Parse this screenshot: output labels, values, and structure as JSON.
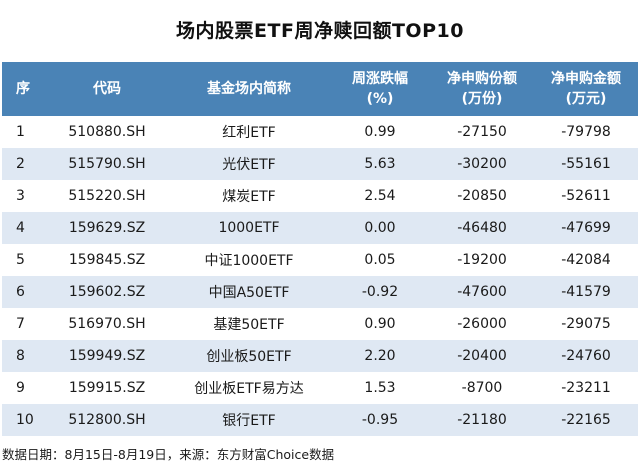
{
  "title": "场内股票ETF周净赎回额TOP10",
  "headers": {
    "rank": "序",
    "code": "代码",
    "name": "基金场内简称",
    "change_line1": "周涨跌幅",
    "change_line2": "(%)",
    "shares_line1": "净申购份额",
    "shares_line2": "(万份)",
    "amount_line1": "净申购金额",
    "amount_line2": "(万元)"
  },
  "rows": [
    {
      "rank": "1",
      "code": "510880.SH",
      "name": "红利ETF",
      "change": "0.99",
      "shares": "-27150",
      "amount": "-79798"
    },
    {
      "rank": "2",
      "code": "515790.SH",
      "name": "光伏ETF",
      "change": "5.63",
      "shares": "-30200",
      "amount": "-55161"
    },
    {
      "rank": "3",
      "code": "515220.SH",
      "name": "煤炭ETF",
      "change": "2.54",
      "shares": "-20850",
      "amount": "-52611"
    },
    {
      "rank": "4",
      "code": "159629.SZ",
      "name": "1000ETF",
      "change": "0.00",
      "shares": "-46480",
      "amount": "-47699"
    },
    {
      "rank": "5",
      "code": "159845.SZ",
      "name": "中证1000ETF",
      "change": "0.05",
      "shares": "-19200",
      "amount": "-42084"
    },
    {
      "rank": "6",
      "code": "159602.SZ",
      "name": "中国A50ETF",
      "change": "-0.92",
      "shares": "-47600",
      "amount": "-41579"
    },
    {
      "rank": "7",
      "code": "516970.SH",
      "name": "基建50ETF",
      "change": "0.90",
      "shares": "-26000",
      "amount": "-29075"
    },
    {
      "rank": "8",
      "code": "159949.SZ",
      "name": "创业板50ETF",
      "change": "2.20",
      "shares": "-20400",
      "amount": "-24760"
    },
    {
      "rank": "9",
      "code": "159915.SZ",
      "name": "创业板ETF易方达",
      "change": "1.53",
      "shares": "-8700",
      "amount": "-23211"
    },
    {
      "rank": "10",
      "code": "512800.SH",
      "name": "银行ETF",
      "change": "-0.95",
      "shares": "-21180",
      "amount": "-22165"
    }
  ],
  "footer": "数据日期：8月15日-8月19日，来源：东方财富Choice数据",
  "colors": {
    "header_bg": "#4a83b6",
    "stripe": "#dfe8f3"
  }
}
